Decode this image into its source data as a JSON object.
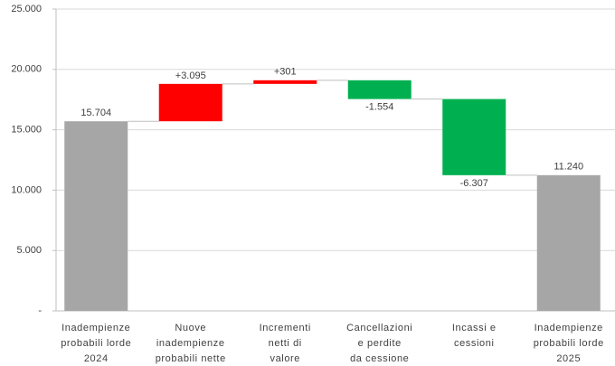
{
  "chart_data": {
    "type": "waterfall",
    "categories": [
      [
        "Inadempienze",
        "probabili lorde",
        "2024"
      ],
      [
        "Nuove",
        "inadempienze",
        "probabili nette"
      ],
      [
        "Incrementi",
        "netti di",
        "valore"
      ],
      [
        "Cancellazioni",
        "e perdite",
        "da cessione"
      ],
      [
        "Incassi e",
        "cessioni"
      ],
      [
        "Inadempienze",
        "probabili lorde",
        "2025"
      ]
    ],
    "measure": [
      "absolute",
      "relative",
      "relative",
      "relative",
      "relative",
      "absolute"
    ],
    "values": [
      15704,
      3095,
      301,
      -1554,
      -6307,
      11240
    ],
    "value_labels": [
      "15.704",
      "+3.095",
      "+301",
      "-1.554",
      "-6.307",
      "11.240"
    ],
    "colors": {
      "total": "#a6a6a6",
      "increase": "#ff0000",
      "decrease": "#00b050"
    },
    "ylim": [
      0,
      25000
    ],
    "yticks": [
      {
        "value": 0,
        "label": "-"
      },
      {
        "value": 5000,
        "label": "5.000"
      },
      {
        "value": 10000,
        "label": "10.000"
      },
      {
        "value": 15000,
        "label": "15.000"
      },
      {
        "value": 20000,
        "label": "20.000"
      },
      {
        "value": 25000,
        "label": "25.000"
      }
    ],
    "grid": true
  }
}
